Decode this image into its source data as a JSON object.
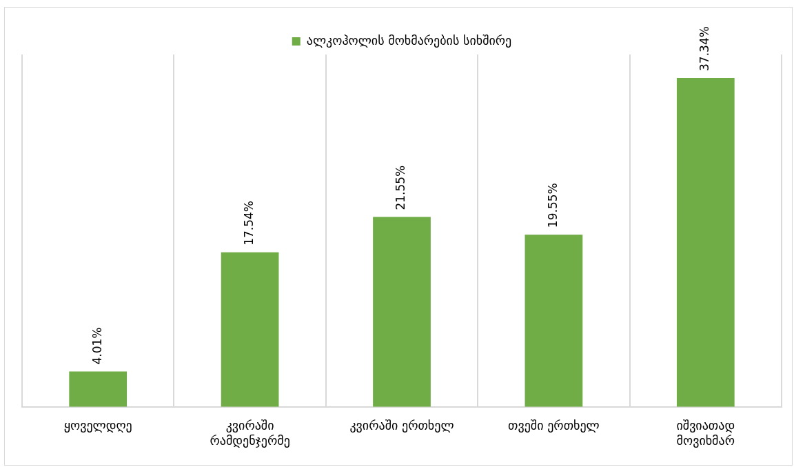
{
  "chart_data": {
    "type": "bar",
    "categories": [
      "ყოველდღე",
      "კვირაში რამდენჯერმე",
      "კვირაში ერთხელ",
      "თვეში ერთხელ",
      "იშვიათად მოვიხმარ"
    ],
    "series": [
      {
        "name": "ალკოჰოლის მოხმარების სიხშირე",
        "color": "#70ad47",
        "values": [
          4.01,
          17.54,
          21.55,
          19.55,
          37.34
        ],
        "value_labels": [
          "4.01%",
          "17.54%",
          "21.55%",
          "19.55%",
          "37.34%"
        ]
      }
    ],
    "grid": "x",
    "legend": "top"
  }
}
